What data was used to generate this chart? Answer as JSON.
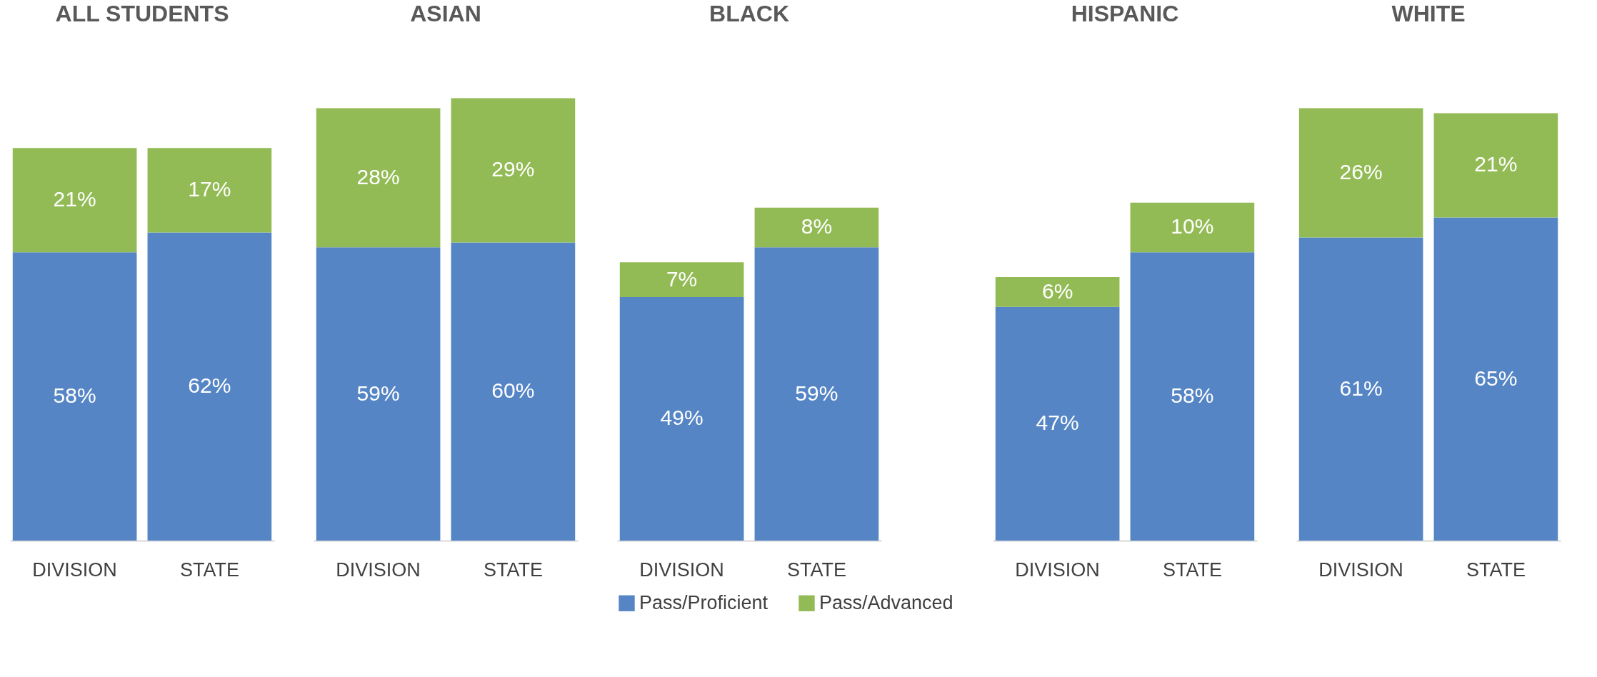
{
  "chart_data": [
    {
      "type": "bar",
      "title": "ALL STUDENTS",
      "categories": [
        "DIVISION",
        "STATE"
      ],
      "stacked": true,
      "series": [
        {
          "color": "#5585c5",
          "values": [
            58,
            62
          ],
          "value_labels": [
            "58%",
            "62%"
          ]
        },
        {
          "color": "#93bb55",
          "values": [
            21,
            17
          ],
          "value_labels": [
            "21%",
            "17%"
          ]
        }
      ]
    },
    {
      "type": "bar",
      "title": "ASIAN",
      "categories": [
        "DIVISION",
        "STATE"
      ],
      "stacked": true,
      "series": [
        {
          "color": "#5585c5",
          "values": [
            59,
            60
          ],
          "value_labels": [
            "59%",
            "60%"
          ]
        },
        {
          "color": "#93bb55",
          "values": [
            28,
            29
          ],
          "value_labels": [
            "28%",
            "29%"
          ]
        }
      ]
    },
    {
      "type": "bar",
      "title": "BLACK",
      "categories": [
        "DIVISION",
        "STATE"
      ],
      "stacked": true,
      "legend": "bottom",
      "series": [
        {
          "name": "Pass/Proficient",
          "color": "#5585c5",
          "values": [
            49,
            59
          ],
          "value_labels": [
            "49%",
            "59%"
          ]
        },
        {
          "name": "Pass/Advanced",
          "color": "#93bb55",
          "values": [
            7,
            8
          ],
          "value_labels": [
            "7%",
            "8%"
          ]
        }
      ]
    },
    {
      "type": "bar",
      "title": "HISPANIC",
      "categories": [
        "DIVISION",
        "STATE"
      ],
      "stacked": true,
      "series": [
        {
          "color": "#5585c5",
          "values": [
            47,
            58
          ],
          "value_labels": [
            "47%",
            "58%"
          ]
        },
        {
          "color": "#93bb55",
          "values": [
            6,
            10
          ],
          "value_labels": [
            "6%",
            "10%"
          ]
        }
      ]
    },
    {
      "type": "bar",
      "title": "WHITE",
      "categories": [
        "DIVISION",
        "STATE"
      ],
      "stacked": true,
      "series": [
        {
          "color": "#5585c5",
          "values": [
            61,
            65
          ],
          "value_labels": [
            "61%",
            "65%"
          ]
        },
        {
          "color": "#93bb55",
          "values": [
            26,
            21
          ],
          "value_labels": [
            "26%",
            "21%"
          ]
        }
      ]
    }
  ]
}
